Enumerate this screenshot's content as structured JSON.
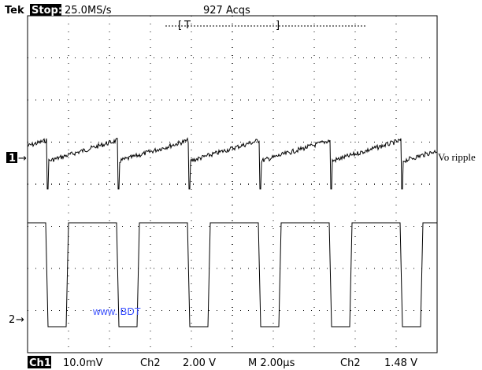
{
  "header": {
    "brand": "Tek",
    "state": "Stop:",
    "rate": "25.0MS/s",
    "acqs": "927 Acqs",
    "trigger_marker": "T"
  },
  "channels": {
    "ch1_marker": "1",
    "ch2_marker": "2",
    "ch1_label": "Vo ripple"
  },
  "watermark": "www. BDT",
  "status": {
    "ch1": "Ch1",
    "ch1_scale": "10.0mV",
    "ch2": "Ch2",
    "ch2_scale": "2.00 V",
    "timebase": "M 2.00µs",
    "trigger_source": "Ch2",
    "trigger_level": "1.48 V"
  }
}
